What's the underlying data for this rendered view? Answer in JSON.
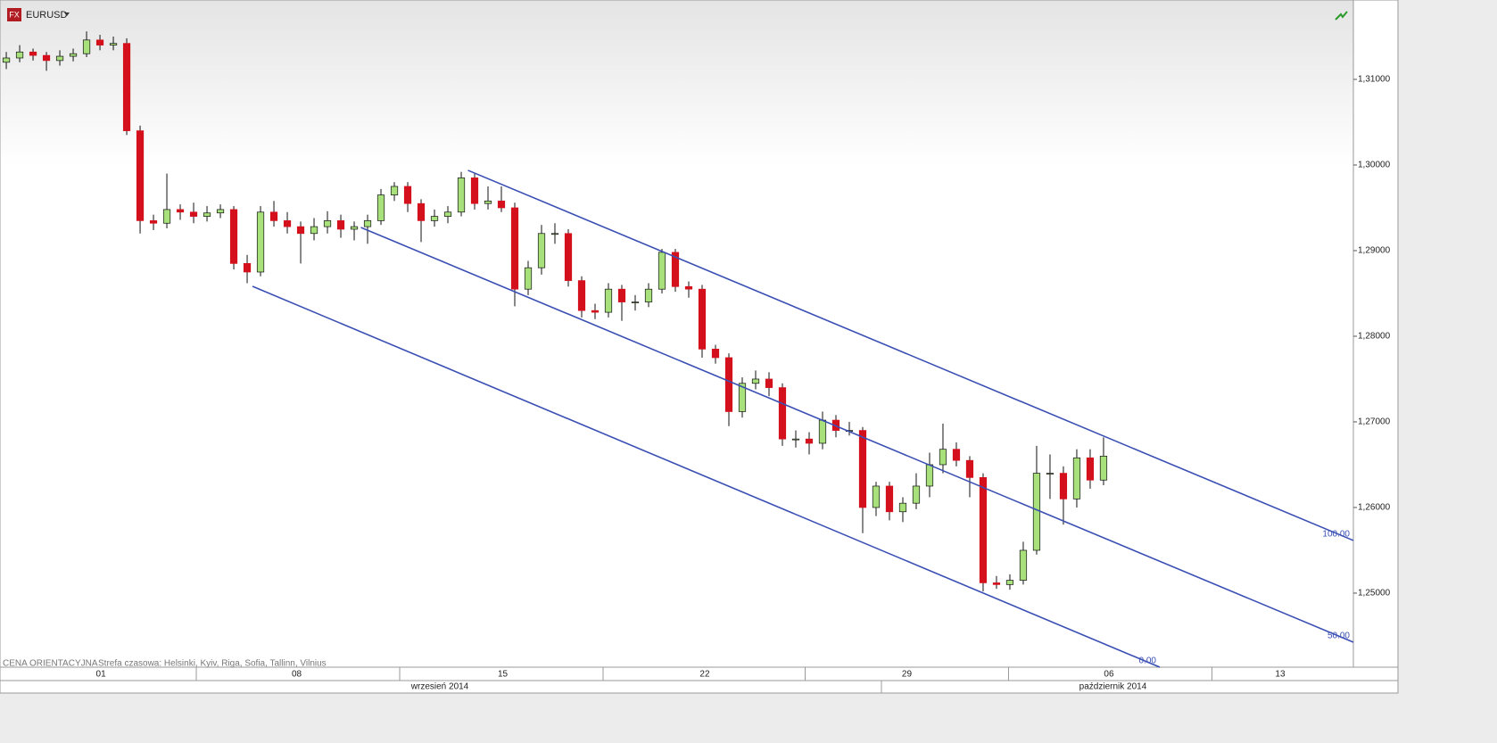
{
  "chart_data": {
    "type": "candlestick",
    "title": "EURUSD",
    "note": "CENA ORIENTACYJNA",
    "timezone": "Strefa czasowa: Helsinki, Kyiv, Riga, Sofia, Tallinn, Vilnius",
    "up_color": "#a8e07c",
    "down_color": "#d4101c",
    "grid": false,
    "xlim": [
      -0.47,
      100.67
    ],
    "ylim": [
      1.24135,
      1.31927
    ],
    "yticks": [
      {
        "value": 1.25,
        "label": "1,25000"
      },
      {
        "value": 1.26,
        "label": "1,26000"
      },
      {
        "value": 1.27,
        "label": "1,27000"
      },
      {
        "value": 1.28,
        "label": "1,28000"
      },
      {
        "value": 1.29,
        "label": "1,29000"
      },
      {
        "value": 1.3,
        "label": "1,30000"
      },
      {
        "value": 1.31,
        "label": "1,31000"
      }
    ],
    "xticks": [
      {
        "value": 7.07,
        "label": "01"
      },
      {
        "value": 21.7,
        "label": "08"
      },
      {
        "value": 37.1,
        "label": "15"
      },
      {
        "value": 52.2,
        "label": "22"
      },
      {
        "value": 67.3,
        "label": "29"
      },
      {
        "value": 82.4,
        "label": "06"
      },
      {
        "value": 95.2,
        "label": "13"
      }
    ],
    "day_separators": [
      14.2,
      29.4,
      44.6,
      59.7,
      74.9,
      90.1
    ],
    "months": [
      {
        "value": 32.4,
        "label": "wrzesień 2014"
      },
      {
        "value": 82.7,
        "label": "październik 2014"
      }
    ],
    "month_separators": [
      65.4
    ],
    "candles": [
      [
        1.312,
        1.3132,
        1.3112,
        1.3125
      ],
      [
        1.3125,
        1.314,
        1.312,
        1.3132
      ],
      [
        1.3132,
        1.3136,
        1.3122,
        1.3128
      ],
      [
        1.3128,
        1.3132,
        1.311,
        1.3122
      ],
      [
        1.3122,
        1.3134,
        1.3116,
        1.3127
      ],
      [
        1.3127,
        1.3136,
        1.3121,
        1.313
      ],
      [
        1.313,
        1.3156,
        1.3126,
        1.3146
      ],
      [
        1.3146,
        1.3152,
        1.3134,
        1.314
      ],
      [
        1.314,
        1.315,
        1.3134,
        1.3142
      ],
      [
        1.3142,
        1.3148,
        1.3035,
        1.304
      ],
      [
        1.304,
        1.3046,
        1.292,
        1.2935
      ],
      [
        1.2935,
        1.2942,
        1.2924,
        1.2932
      ],
      [
        1.2932,
        1.299,
        1.2926,
        1.2948
      ],
      [
        1.2948,
        1.2954,
        1.2936,
        1.2945
      ],
      [
        1.2945,
        1.2956,
        1.2932,
        1.294
      ],
      [
        1.294,
        1.2952,
        1.2934,
        1.2944
      ],
      [
        1.2944,
        1.2954,
        1.2938,
        1.2948
      ],
      [
        1.2948,
        1.2952,
        1.2878,
        1.2885
      ],
      [
        1.2885,
        1.2895,
        1.2862,
        1.2875
      ],
      [
        1.2875,
        1.2952,
        1.287,
        1.2945
      ],
      [
        1.2945,
        1.2958,
        1.2928,
        1.2935
      ],
      [
        1.2935,
        1.2945,
        1.292,
        1.2928
      ],
      [
        1.2928,
        1.2934,
        1.2885,
        1.292
      ],
      [
        1.292,
        1.2938,
        1.2912,
        1.2928
      ],
      [
        1.2928,
        1.2946,
        1.292,
        1.2935
      ],
      [
        1.2935,
        1.2942,
        1.2915,
        1.2925
      ],
      [
        1.2925,
        1.2934,
        1.2912,
        1.2928
      ],
      [
        1.2928,
        1.2942,
        1.2908,
        1.2935
      ],
      [
        1.2935,
        1.2972,
        1.293,
        1.2965
      ],
      [
        1.2965,
        1.298,
        1.2958,
        1.2975
      ],
      [
        1.2975,
        1.298,
        1.2945,
        1.2955
      ],
      [
        1.2955,
        1.296,
        1.291,
        1.2935
      ],
      [
        1.2935,
        1.2948,
        1.2928,
        1.294
      ],
      [
        1.294,
        1.2952,
        1.2932,
        1.2945
      ],
      [
        1.2945,
        1.2992,
        1.294,
        1.2985
      ],
      [
        1.2985,
        1.299,
        1.2948,
        1.2955
      ],
      [
        1.2955,
        1.2975,
        1.2948,
        1.2958
      ],
      [
        1.2958,
        1.2975,
        1.2945,
        1.295
      ],
      [
        1.295,
        1.2956,
        1.2835,
        1.2855
      ],
      [
        1.2855,
        1.2888,
        1.2848,
        1.288
      ],
      [
        1.288,
        1.293,
        1.2872,
        1.292
      ],
      [
        1.292,
        1.2932,
        1.2908,
        1.292
      ],
      [
        1.292,
        1.2925,
        1.2858,
        1.2865
      ],
      [
        1.2865,
        1.287,
        1.2822,
        1.283
      ],
      [
        1.283,
        1.2838,
        1.282,
        1.2828
      ],
      [
        1.2828,
        1.2862,
        1.2822,
        1.2855
      ],
      [
        1.2855,
        1.286,
        1.2818,
        1.284
      ],
      [
        1.284,
        1.2848,
        1.283,
        1.284
      ],
      [
        1.284,
        1.2862,
        1.2834,
        1.2855
      ],
      [
        1.2855,
        1.2902,
        1.285,
        1.2898
      ],
      [
        1.2898,
        1.2902,
        1.2852,
        1.2858
      ],
      [
        1.2858,
        1.2864,
        1.2845,
        1.2855
      ],
      [
        1.2855,
        1.286,
        1.2775,
        1.2785
      ],
      [
        1.2785,
        1.279,
        1.2768,
        1.2775
      ],
      [
        1.2775,
        1.278,
        1.2695,
        1.2712
      ],
      [
        1.2712,
        1.2752,
        1.2705,
        1.2745
      ],
      [
        1.2745,
        1.276,
        1.2738,
        1.275
      ],
      [
        1.275,
        1.2758,
        1.273,
        1.274
      ],
      [
        1.274,
        1.2745,
        1.2672,
        1.268
      ],
      [
        1.268,
        1.269,
        1.267,
        1.268
      ],
      [
        1.268,
        1.2688,
        1.2662,
        1.2675
      ],
      [
        1.2675,
        1.2712,
        1.2668,
        1.2702
      ],
      [
        1.2702,
        1.2708,
        1.2682,
        1.269
      ],
      [
        1.269,
        1.27,
        1.2684,
        1.269
      ],
      [
        1.269,
        1.2694,
        1.257,
        1.26
      ],
      [
        1.26,
        1.263,
        1.259,
        1.2625
      ],
      [
        1.2625,
        1.263,
        1.2585,
        1.2595
      ],
      [
        1.2595,
        1.2612,
        1.2583,
        1.2605
      ],
      [
        1.2605,
        1.264,
        1.2598,
        1.2625
      ],
      [
        1.2625,
        1.2664,
        1.2612,
        1.265
      ],
      [
        1.265,
        1.2698,
        1.264,
        1.2668
      ],
      [
        1.2668,
        1.2676,
        1.2648,
        1.2655
      ],
      [
        1.2655,
        1.266,
        1.2612,
        1.2635
      ],
      [
        1.2635,
        1.264,
        1.2502,
        1.2512
      ],
      [
        1.2512,
        1.252,
        1.2505,
        1.251
      ],
      [
        1.251,
        1.2522,
        1.2504,
        1.2515
      ],
      [
        1.2515,
        1.256,
        1.251,
        1.255
      ],
      [
        1.255,
        1.2672,
        1.2545,
        1.264
      ],
      [
        1.264,
        1.2662,
        1.261,
        1.264
      ],
      [
        1.264,
        1.2648,
        1.258,
        1.261
      ],
      [
        1.261,
        1.2668,
        1.26,
        1.2658
      ],
      [
        1.2658,
        1.2668,
        1.2622,
        1.2632
      ],
      [
        1.2632,
        1.2682,
        1.2626,
        1.266
      ]
    ],
    "channel": {
      "color": "#3a4fb4",
      "lines": [
        {
          "label": "100.00",
          "start": [
            34.5,
            1.29938
          ],
          "end": [
            100.67,
            1.25615
          ]
        },
        {
          "label": "50.00",
          "start": [
            26.5,
            1.29271
          ],
          "end": [
            100.67,
            1.24427
          ]
        },
        {
          "label": "0.00",
          "start": [
            18.4,
            1.28583
          ],
          "end": [
            86.2,
            1.24135
          ]
        }
      ]
    }
  }
}
